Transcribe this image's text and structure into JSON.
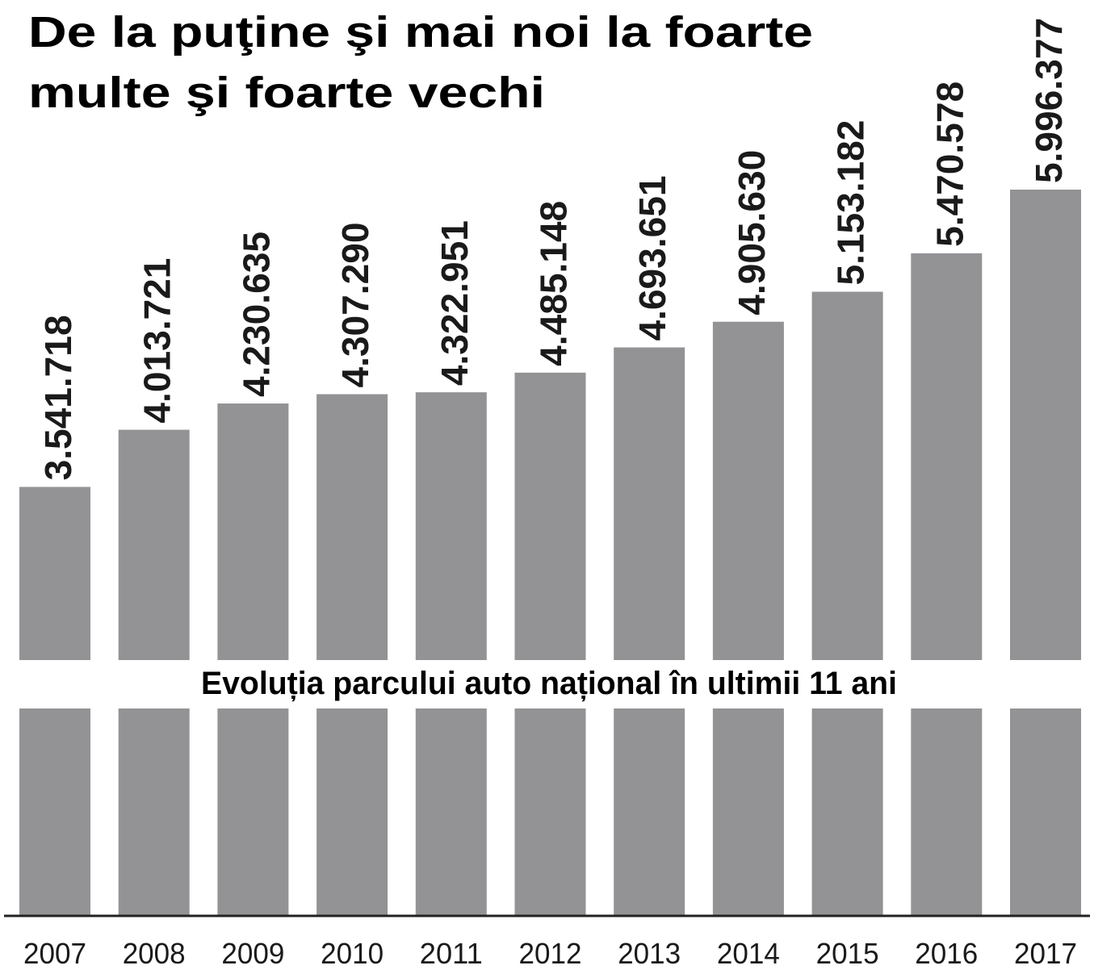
{
  "chart_data": {
    "type": "bar",
    "title": [
      "De la puţine şi mai noi la foarte",
      "multe şi foarte vechi"
    ],
    "subtitle": "Evoluția parcului auto național în ultimii 11 ani",
    "categories": [
      "2007",
      "2008",
      "2009",
      "2010",
      "2011",
      "2012",
      "2013",
      "2014",
      "2015",
      "2016",
      "2017"
    ],
    "values": [
      3541718,
      4013721,
      4230635,
      4307290,
      4322951,
      4485148,
      4693651,
      4905630,
      5153182,
      5470578,
      5996377
    ],
    "value_labels": [
      "3.541.718",
      "4.013.721",
      "4.230.635",
      "4.307.290",
      "4.322.951",
      "4.485.148",
      "4.693.651",
      "4.905.630",
      "5.153.182",
      "5.470.578",
      "5.996.377"
    ],
    "xlabel": "",
    "ylabel": "",
    "ylim": [
      0,
      6000000
    ],
    "grid": false,
    "bar_color": "#939396"
  }
}
